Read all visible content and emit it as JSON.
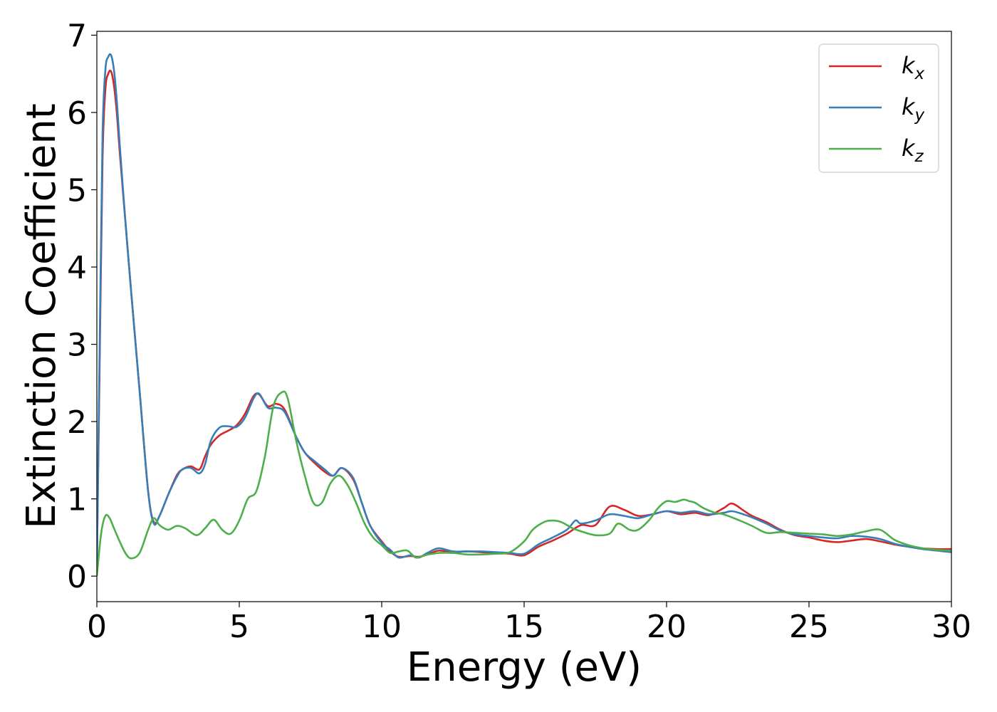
{
  "chart_data": {
    "type": "line",
    "xlabel": "Energy (eV)",
    "ylabel": "Extinction Coefficient",
    "xlim": [
      0,
      30
    ],
    "ylim": [
      -0.33,
      7.05
    ],
    "xticks": [
      0,
      5,
      10,
      15,
      20,
      25,
      30
    ],
    "yticks": [
      0,
      1,
      2,
      3,
      4,
      5,
      6,
      7
    ],
    "xtick_labels": [
      "0",
      "5",
      "10",
      "15",
      "20",
      "25",
      "30"
    ],
    "ytick_labels": [
      "0",
      "1",
      "2",
      "3",
      "4",
      "5",
      "6",
      "7"
    ],
    "grid": false,
    "legend_position": "top-right",
    "series": [
      {
        "name": "k",
        "subscript": "x",
        "color": "#d62728",
        "x": [
          0,
          0.1,
          0.2,
          0.3,
          0.4,
          0.5,
          0.6,
          0.7,
          0.8,
          1.0,
          1.2,
          1.5,
          1.8,
          2.0,
          2.2,
          2.5,
          2.8,
          3.0,
          3.3,
          3.6,
          3.8,
          4.0,
          4.3,
          4.6,
          4.9,
          5.2,
          5.5,
          5.7,
          6.0,
          6.3,
          6.6,
          7.0,
          7.3,
          7.6,
          8.0,
          8.3,
          8.6,
          9.0,
          9.3,
          9.6,
          10.0,
          10.3,
          10.6,
          11.0,
          11.3,
          11.6,
          12.0,
          12.5,
          13.0,
          13.5,
          14.0,
          14.5,
          15.0,
          15.5,
          16.0,
          16.5,
          17.0,
          17.5,
          18.0,
          18.5,
          19.0,
          19.5,
          20.0,
          20.5,
          21.0,
          21.5,
          22.0,
          22.3,
          22.7,
          23.0,
          23.5,
          24.0,
          24.5,
          25.0,
          25.5,
          26.0,
          26.5,
          27.0,
          27.5,
          28.0,
          28.5,
          29.0,
          29.5,
          30.0
        ],
        "values": [
          0.1,
          2.8,
          5.4,
          6.3,
          6.5,
          6.53,
          6.35,
          6.0,
          5.5,
          4.6,
          3.7,
          2.4,
          1.1,
          0.7,
          0.78,
          1.05,
          1.3,
          1.38,
          1.42,
          1.38,
          1.55,
          1.7,
          1.82,
          1.88,
          1.95,
          2.1,
          2.33,
          2.35,
          2.2,
          2.23,
          2.15,
          1.8,
          1.6,
          1.48,
          1.35,
          1.3,
          1.4,
          1.25,
          0.95,
          0.65,
          0.45,
          0.32,
          0.25,
          0.26,
          0.25,
          0.28,
          0.33,
          0.31,
          0.32,
          0.31,
          0.3,
          0.29,
          0.27,
          0.38,
          0.46,
          0.55,
          0.66,
          0.66,
          0.9,
          0.86,
          0.78,
          0.8,
          0.84,
          0.8,
          0.82,
          0.79,
          0.88,
          0.94,
          0.85,
          0.78,
          0.7,
          0.6,
          0.53,
          0.5,
          0.46,
          0.44,
          0.46,
          0.48,
          0.45,
          0.41,
          0.38,
          0.36,
          0.35,
          0.35
        ]
      },
      {
        "name": "k",
        "subscript": "y",
        "color": "#377eb8",
        "x": [
          0,
          0.1,
          0.2,
          0.3,
          0.4,
          0.5,
          0.6,
          0.7,
          0.8,
          1.0,
          1.2,
          1.5,
          1.8,
          2.0,
          2.2,
          2.5,
          2.8,
          3.0,
          3.3,
          3.6,
          3.8,
          4.0,
          4.3,
          4.6,
          4.9,
          5.2,
          5.5,
          5.7,
          6.0,
          6.3,
          6.6,
          7.0,
          7.3,
          7.6,
          8.0,
          8.3,
          8.6,
          9.0,
          9.3,
          9.6,
          10.0,
          10.3,
          10.6,
          11.0,
          11.3,
          11.6,
          12.0,
          12.5,
          13.0,
          13.5,
          14.0,
          14.5,
          15.0,
          15.5,
          16.0,
          16.5,
          16.8,
          17.0,
          17.5,
          18.0,
          18.5,
          19.0,
          19.5,
          20.0,
          20.5,
          21.0,
          21.5,
          22.0,
          22.3,
          22.7,
          23.0,
          23.5,
          24.0,
          24.5,
          25.0,
          25.5,
          26.0,
          26.5,
          27.0,
          27.5,
          28.0,
          28.5,
          29.0,
          29.5,
          30.0
        ],
        "values": [
          0.1,
          3.0,
          5.7,
          6.55,
          6.72,
          6.74,
          6.55,
          6.15,
          5.6,
          4.6,
          3.7,
          2.4,
          1.1,
          0.68,
          0.78,
          1.05,
          1.28,
          1.38,
          1.4,
          1.33,
          1.45,
          1.75,
          1.92,
          1.94,
          1.93,
          2.05,
          2.3,
          2.36,
          2.18,
          2.18,
          2.12,
          1.8,
          1.6,
          1.5,
          1.38,
          1.3,
          1.4,
          1.27,
          0.95,
          0.65,
          0.43,
          0.34,
          0.24,
          0.27,
          0.24,
          0.3,
          0.36,
          0.32,
          0.32,
          0.32,
          0.31,
          0.3,
          0.29,
          0.41,
          0.5,
          0.6,
          0.72,
          0.68,
          0.72,
          0.8,
          0.78,
          0.75,
          0.8,
          0.84,
          0.82,
          0.84,
          0.8,
          0.82,
          0.84,
          0.8,
          0.76,
          0.68,
          0.59,
          0.54,
          0.52,
          0.5,
          0.49,
          0.52,
          0.51,
          0.48,
          0.42,
          0.38,
          0.35,
          0.33,
          0.31
        ]
      },
      {
        "name": "k",
        "subscript": "z",
        "color": "#4daf4a",
        "x": [
          0,
          0.15,
          0.3,
          0.45,
          0.6,
          0.8,
          1.0,
          1.2,
          1.5,
          1.8,
          2.0,
          2.2,
          2.5,
          2.8,
          3.1,
          3.5,
          3.8,
          4.1,
          4.4,
          4.7,
          5.0,
          5.3,
          5.6,
          5.9,
          6.2,
          6.5,
          6.7,
          7.0,
          7.3,
          7.6,
          7.9,
          8.2,
          8.5,
          8.8,
          9.1,
          9.4,
          9.7,
          10.0,
          10.3,
          10.6,
          10.9,
          11.2,
          11.5,
          12.0,
          12.5,
          13.0,
          13.5,
          14.0,
          14.5,
          15.0,
          15.3,
          15.7,
          16.0,
          16.3,
          16.7,
          17.0,
          17.5,
          18.0,
          18.3,
          18.7,
          19.0,
          19.4,
          19.7,
          20.0,
          20.3,
          20.6,
          20.8,
          21.0,
          21.3,
          21.7,
          22.0,
          22.5,
          23.0,
          23.5,
          24.0,
          24.5,
          25.0,
          25.5,
          26.0,
          26.5,
          27.0,
          27.5,
          28.0,
          28.5,
          29.0,
          29.5,
          30.0
        ],
        "values": [
          0.0,
          0.55,
          0.78,
          0.75,
          0.62,
          0.45,
          0.3,
          0.23,
          0.3,
          0.6,
          0.75,
          0.66,
          0.6,
          0.65,
          0.62,
          0.53,
          0.62,
          0.73,
          0.6,
          0.55,
          0.72,
          1.0,
          1.1,
          1.55,
          2.2,
          2.38,
          2.3,
          1.75,
          1.3,
          0.95,
          0.95,
          1.2,
          1.3,
          1.18,
          0.95,
          0.68,
          0.5,
          0.4,
          0.3,
          0.32,
          0.33,
          0.24,
          0.27,
          0.3,
          0.3,
          0.28,
          0.28,
          0.29,
          0.31,
          0.45,
          0.6,
          0.7,
          0.72,
          0.7,
          0.62,
          0.58,
          0.53,
          0.55,
          0.68,
          0.6,
          0.6,
          0.73,
          0.88,
          0.97,
          0.96,
          0.99,
          0.97,
          0.95,
          0.88,
          0.82,
          0.8,
          0.73,
          0.65,
          0.56,
          0.57,
          0.56,
          0.55,
          0.54,
          0.52,
          0.54,
          0.58,
          0.6,
          0.47,
          0.4,
          0.36,
          0.34,
          0.33
        ]
      }
    ]
  }
}
